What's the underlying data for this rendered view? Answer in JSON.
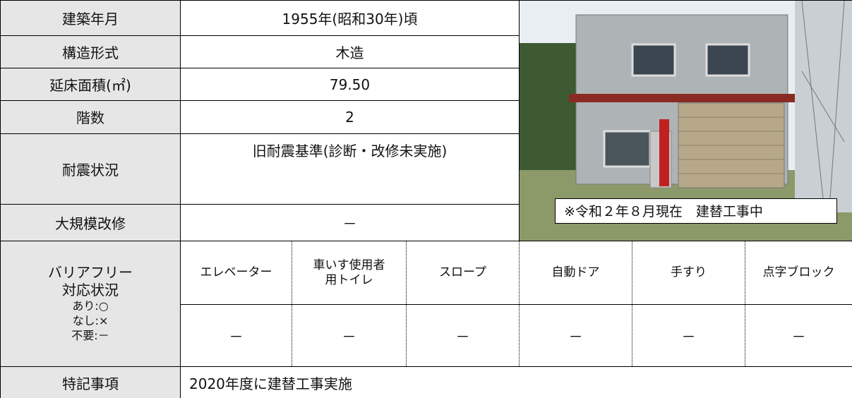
{
  "table": {
    "rows": [
      {
        "label": "建築年月",
        "value": "1955年(昭和30年)頃"
      },
      {
        "label": "構造形式",
        "value": "木造"
      },
      {
        "label": "延床面積(㎡)",
        "value": "79.50"
      },
      {
        "label": "階数",
        "value": "2"
      },
      {
        "label": "耐震状況",
        "value": "旧耐震基準(診断・改修未実施)"
      },
      {
        "label": "大規模改修",
        "value": "－"
      }
    ],
    "photo_caption": "※令和２年８月現在　建替工事中",
    "barrier_free": {
      "label": [
        "バリアフリー",
        "対応状況"
      ],
      "legend": [
        "あり:○",
        "なし:×",
        "不要:－"
      ],
      "headers": [
        "エレベーター",
        "車いす使用者用トイレ",
        "スロープ",
        "自動ドア",
        "手すり",
        "点字ブロック"
      ],
      "values": [
        "－",
        "－",
        "－",
        "－",
        "－",
        "－"
      ]
    },
    "notes": {
      "label": "特記事項",
      "value": "2020年度に建替工事実施"
    }
  }
}
